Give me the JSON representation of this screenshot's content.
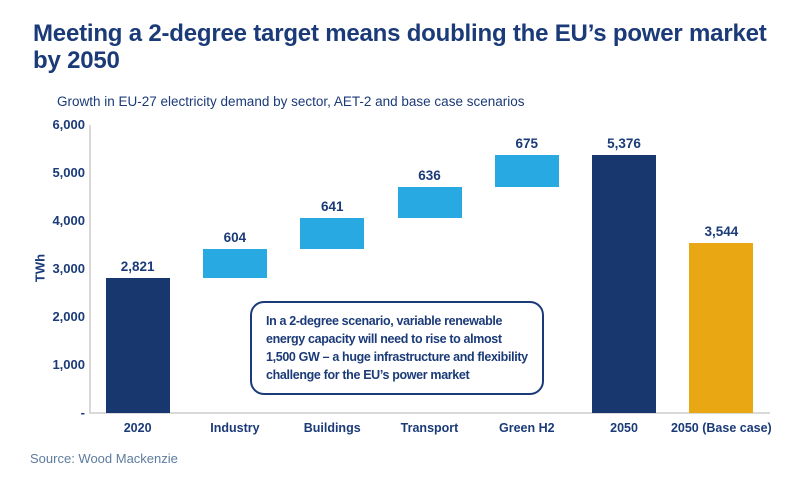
{
  "page": {
    "title_line1": "Meeting a 2-degree target means doubling the EU’s power market",
    "title_line2": "by 2050",
    "subtitle": "Growth in EU-27 electricity demand by sector, AET-2 and base case scenarios",
    "source": "Source: Wood Mackenzie"
  },
  "annotation": {
    "lines": [
      "In a 2-degree scenario, variable renewable",
      "energy capacity will need to rise to almost",
      "1,500 GW – a huge infrastructure and flexibility",
      "challenge for the EU’s power market"
    ]
  },
  "chart_data": {
    "type": "bar",
    "subtype": "waterfall",
    "title": "Growth in EU-27 electricity demand by sector, AET-2 and base case scenarios",
    "xlabel": "",
    "ylabel": "TWh",
    "ylim": [
      0,
      6000
    ],
    "grid": false,
    "legend": false,
    "categories": [
      "2020",
      "Industry",
      "Buildings",
      "Transport",
      "Green H2",
      "2050",
      "2050 (Base case)"
    ],
    "values": [
      2821,
      604,
      641,
      636,
      675,
      5376,
      3544
    ],
    "value_labels": [
      "2,821",
      "604",
      "641",
      "636",
      "675",
      "5,376",
      "3,544"
    ],
    "bar_types": [
      "total",
      "increase",
      "increase",
      "increase",
      "increase",
      "total",
      "total"
    ],
    "cumulative_base": [
      0,
      2821,
      3425,
      4066,
      4702,
      0,
      0
    ],
    "bar_colors": [
      "#17376e",
      "#29a9e1",
      "#29a9e1",
      "#29a9e1",
      "#29a9e1",
      "#17376e",
      "#e9a713"
    ],
    "y_ticks": [
      {
        "value": 6000,
        "label": "6,000"
      },
      {
        "value": 5000,
        "label": "5,000"
      },
      {
        "value": 4000,
        "label": "4,000"
      },
      {
        "value": 3000,
        "label": "3,000"
      },
      {
        "value": 2000,
        "label": "2,000"
      },
      {
        "value": 1000,
        "label": "1,000"
      },
      {
        "value": 0,
        "label": "-"
      }
    ],
    "colors": {
      "total_bar": "#17376e",
      "increment_bar": "#29a9e1",
      "base_case_bar": "#e9a713",
      "text": "#1b3a78",
      "axis": "#d9d9d9",
      "source_text": "#5e7b9e"
    }
  }
}
